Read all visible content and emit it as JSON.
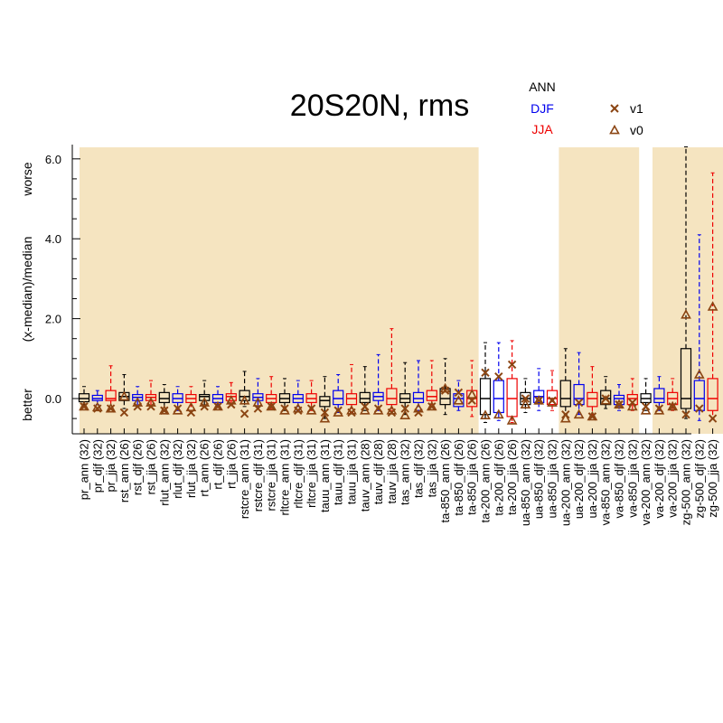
{
  "chart_data": {
    "type": "box",
    "title": "20S20N, rms",
    "ylabel": "(x-median)/median",
    "ylabel_top": "worse",
    "ylabel_bottom": "better",
    "ylim": [
      -0.85,
      6.3
    ],
    "yticks": [
      {
        "value": 0.0,
        "label": "0.0"
      },
      {
        "value": 2.0,
        "label": "2.0"
      },
      {
        "value": 4.0,
        "label": "4.0"
      },
      {
        "value": 6.0,
        "label": "6.0"
      }
    ],
    "season_legend": [
      {
        "name": "ANN",
        "color": "#000000"
      },
      {
        "name": "DJF",
        "color": "#0000ee"
      },
      {
        "name": "JJA",
        "color": "#ee0000"
      }
    ],
    "version_legend": [
      {
        "name": "v1",
        "marker": "x",
        "color": "#8b4513"
      },
      {
        "name": "v0",
        "marker": "triangle",
        "color": "#8b4513"
      }
    ],
    "colors": {
      "shade": "#f5e4c0",
      "marker": "#8b4513",
      "ANN": "#000000",
      "DJF": "#0000ee",
      "JJA": "#ee0000"
    },
    "shaded_groups": [
      {
        "from": 0,
        "to": 29
      },
      {
        "from": 36,
        "to": 41
      },
      {
        "from": 43,
        "to": 50
      }
    ],
    "series": [
      {
        "label": "pr_ann (32)",
        "season": "ANN",
        "min": -0.2,
        "q1": -0.08,
        "median": 0.0,
        "q3": 0.12,
        "max": 0.3,
        "v1": -0.2,
        "v0": -0.2
      },
      {
        "label": "pr_djf (32)",
        "season": "DJF",
        "min": -0.15,
        "q1": -0.05,
        "median": 0.0,
        "q3": 0.08,
        "max": 0.2,
        "v1": -0.25,
        "v0": -0.22
      },
      {
        "label": "pr_jja (32)",
        "season": "JJA",
        "min": -0.25,
        "q1": -0.05,
        "median": 0.0,
        "q3": 0.2,
        "max": 0.82,
        "v1": -0.25,
        "v0": -0.25
      },
      {
        "label": "rst_ann (26)",
        "season": "ANN",
        "min": -0.25,
        "q1": -0.05,
        "median": 0.05,
        "q3": 0.15,
        "max": 0.6,
        "v1": -0.35,
        "v0": 0.05
      },
      {
        "label": "rst_djf (26)",
        "season": "DJF",
        "min": -0.2,
        "q1": -0.05,
        "median": 0.03,
        "q3": 0.1,
        "max": 0.3,
        "v1": -0.2,
        "v0": -0.1
      },
      {
        "label": "rst_jja (26)",
        "season": "JJA",
        "min": -0.2,
        "q1": -0.05,
        "median": 0.03,
        "q3": 0.1,
        "max": 0.45,
        "v1": -0.2,
        "v0": -0.1
      },
      {
        "label": "rlut_ann (32)",
        "season": "ANN",
        "min": -0.3,
        "q1": -0.1,
        "median": 0.0,
        "q3": 0.15,
        "max": 0.35,
        "v1": -0.3,
        "v0": -0.3
      },
      {
        "label": "rlut_djf (32)",
        "season": "DJF",
        "min": -0.3,
        "q1": -0.1,
        "median": 0.0,
        "q3": 0.12,
        "max": 0.3,
        "v1": -0.25,
        "v0": -0.3
      },
      {
        "label": "rlut_jja (32)",
        "season": "JJA",
        "min": -0.3,
        "q1": -0.1,
        "median": 0.0,
        "q3": 0.1,
        "max": 0.3,
        "v1": -0.35,
        "v0": -0.22
      },
      {
        "label": "rt_ann (26)",
        "season": "ANN",
        "min": -0.2,
        "q1": -0.05,
        "median": 0.05,
        "q3": 0.1,
        "max": 0.45,
        "v1": -0.2,
        "v0": -0.1
      },
      {
        "label": "rt_djf (26)",
        "season": "DJF",
        "min": -0.2,
        "q1": -0.1,
        "median": 0.0,
        "q3": 0.1,
        "max": 0.3,
        "v1": -0.2,
        "v0": -0.2
      },
      {
        "label": "rt_jja (26)",
        "season": "JJA",
        "min": -0.15,
        "q1": -0.05,
        "median": 0.05,
        "q3": 0.12,
        "max": 0.4,
        "v1": -0.15,
        "v0": -0.05
      },
      {
        "label": "rstcre_ann (31)",
        "season": "ANN",
        "min": -0.2,
        "q1": -0.05,
        "median": 0.05,
        "q3": 0.2,
        "max": 0.68,
        "v1": -0.38,
        "v0": -0.05
      },
      {
        "label": "rstcre_djf (31)",
        "season": "DJF",
        "min": -0.2,
        "q1": -0.05,
        "median": 0.03,
        "q3": 0.12,
        "max": 0.5,
        "v1": -0.25,
        "v0": -0.1
      },
      {
        "label": "rstcre_jja (31)",
        "season": "JJA",
        "min": -0.25,
        "q1": -0.1,
        "median": 0.0,
        "q3": 0.1,
        "max": 0.55,
        "v1": -0.2,
        "v0": -0.2
      },
      {
        "label": "rltcre_ann (31)",
        "season": "ANN",
        "min": -0.3,
        "q1": -0.1,
        "median": 0.0,
        "q3": 0.12,
        "max": 0.5,
        "v1": -0.25,
        "v0": -0.3
      },
      {
        "label": "rltcre_djf (31)",
        "season": "DJF",
        "min": -0.3,
        "q1": -0.1,
        "median": 0.0,
        "q3": 0.1,
        "max": 0.45,
        "v1": -0.3,
        "v0": -0.25
      },
      {
        "label": "rltcre_jja (31)",
        "season": "JJA",
        "min": -0.3,
        "q1": -0.1,
        "median": 0.0,
        "q3": 0.12,
        "max": 0.45,
        "v1": -0.25,
        "v0": -0.3
      },
      {
        "label": "tauu_ann (31)",
        "season": "ANN",
        "min": -0.5,
        "q1": -0.2,
        "median": -0.05,
        "q3": 0.05,
        "max": 0.55,
        "v1": -0.35,
        "v0": -0.5
      },
      {
        "label": "tauu_djf (31)",
        "season": "DJF",
        "min": -0.35,
        "q1": -0.15,
        "median": 0.0,
        "q3": 0.2,
        "max": 0.6,
        "v1": -0.3,
        "v0": -0.35
      },
      {
        "label": "tauu_jja (31)",
        "season": "JJA",
        "min": -0.35,
        "q1": -0.15,
        "median": 0.0,
        "q3": 0.12,
        "max": 0.85,
        "v1": -0.35,
        "v0": -0.3
      },
      {
        "label": "tauv_ann (28)",
        "season": "ANN",
        "min": -0.3,
        "q1": -0.1,
        "median": 0.0,
        "q3": 0.15,
        "max": 0.8,
        "v1": -0.2,
        "v0": -0.3
      },
      {
        "label": "tauv_djf (28)",
        "season": "DJF",
        "min": -0.3,
        "q1": -0.05,
        "median": 0.05,
        "q3": 0.15,
        "max": 1.1,
        "v1": -0.25,
        "v0": -0.3
      },
      {
        "label": "tauv_jja (28)",
        "season": "JJA",
        "min": -0.3,
        "q1": -0.15,
        "median": 0.0,
        "q3": 0.25,
        "max": 1.75,
        "v1": -0.35,
        "v0": -0.3
      },
      {
        "label": "tas_ann (32)",
        "season": "ANN",
        "min": -0.4,
        "q1": -0.1,
        "median": 0.0,
        "q3": 0.12,
        "max": 0.9,
        "v1": -0.25,
        "v0": -0.42
      },
      {
        "label": "tas_djf (32)",
        "season": "DJF",
        "min": -0.3,
        "q1": -0.1,
        "median": 0.0,
        "q3": 0.15,
        "max": 0.95,
        "v1": -0.35,
        "v0": -0.25
      },
      {
        "label": "tas_jja (32)",
        "season": "JJA",
        "min": -0.2,
        "q1": -0.05,
        "median": 0.05,
        "q3": 0.2,
        "max": 0.95,
        "v1": -0.2,
        "v0": -0.2
      },
      {
        "label": "ta-850_ann (26)",
        "season": "ANN",
        "min": -0.4,
        "q1": -0.15,
        "median": 0.0,
        "q3": 0.25,
        "max": 1.0,
        "v1": 0.2,
        "v0": 0.25
      },
      {
        "label": "ta-850_djf (26)",
        "season": "DJF",
        "min": -0.3,
        "q1": -0.2,
        "median": 0.0,
        "q3": 0.12,
        "max": 0.45,
        "v1": 0.15,
        "v0": -0.05
      },
      {
        "label": "ta-850_jja (26)",
        "season": "JJA",
        "min": -0.45,
        "q1": -0.2,
        "median": 0.0,
        "q3": 0.2,
        "max": 0.95,
        "v1": -0.05,
        "v0": 0.1
      },
      {
        "label": "ta-200_ann (26)",
        "season": "ANN",
        "min": -0.6,
        "q1": -0.4,
        "median": 0.0,
        "q3": 0.5,
        "max": 1.4,
        "v1": 0.65,
        "v0": -0.42
      },
      {
        "label": "ta-200_djf (26)",
        "season": "DJF",
        "min": -0.55,
        "q1": -0.35,
        "median": 0.0,
        "q3": 0.45,
        "max": 1.4,
        "v1": 0.55,
        "v0": -0.4
      },
      {
        "label": "ta-200_jja (26)",
        "season": "JJA",
        "min": -0.6,
        "q1": -0.45,
        "median": 0.0,
        "q3": 0.5,
        "max": 1.45,
        "v1": 0.85,
        "v0": -0.55
      },
      {
        "label": "ua-850_ann (32)",
        "season": "ANN",
        "min": -0.35,
        "q1": -0.15,
        "median": 0.0,
        "q3": 0.15,
        "max": 0.5,
        "v1": 0.0,
        "v0": -0.15
      },
      {
        "label": "ua-850_djf (32)",
        "season": "DJF",
        "min": -0.3,
        "q1": -0.1,
        "median": 0.05,
        "q3": 0.2,
        "max": 0.75,
        "v1": -0.05,
        "v0": -0.05
      },
      {
        "label": "ua-850_jja (32)",
        "season": "JJA",
        "min": -0.3,
        "q1": -0.15,
        "median": 0.0,
        "q3": 0.2,
        "max": 0.7,
        "v1": -0.05,
        "v0": -0.1
      },
      {
        "label": "ua-200_ann (32)",
        "season": "ANN",
        "min": -0.4,
        "q1": -0.2,
        "median": 0.0,
        "q3": 0.45,
        "max": 1.25,
        "v1": -0.4,
        "v0": -0.5
      },
      {
        "label": "ua-200_djf (32)",
        "season": "DJF",
        "min": -0.4,
        "q1": -0.15,
        "median": 0.0,
        "q3": 0.35,
        "max": 1.15,
        "v1": -0.1,
        "v0": -0.4
      },
      {
        "label": "ua-200_jja (32)",
        "season": "JJA",
        "min": -0.45,
        "q1": -0.2,
        "median": 0.0,
        "q3": 0.15,
        "max": 0.8,
        "v1": -0.45,
        "v0": -0.45
      },
      {
        "label": "va-850_ann (32)",
        "season": "ANN",
        "min": -0.25,
        "q1": -0.15,
        "median": 0.0,
        "q3": 0.2,
        "max": 0.55,
        "v1": 0.0,
        "v0": -0.05
      },
      {
        "label": "va-850_djf (32)",
        "season": "DJF",
        "min": -0.3,
        "q1": -0.15,
        "median": 0.0,
        "q3": 0.08,
        "max": 0.35,
        "v1": -0.15,
        "v0": -0.15
      },
      {
        "label": "va-850_jja (32)",
        "season": "JJA",
        "min": -0.3,
        "q1": -0.15,
        "median": 0.0,
        "q3": 0.1,
        "max": 0.5,
        "v1": -0.1,
        "v0": -0.2
      },
      {
        "label": "va-200_ann (32)",
        "season": "ANN",
        "min": -0.3,
        "q1": -0.1,
        "median": 0.0,
        "q3": 0.12,
        "max": 0.5,
        "v1": -0.2,
        "v0": -0.3
      },
      {
        "label": "va-200_djf (32)",
        "season": "DJF",
        "min": -0.3,
        "q1": -0.1,
        "median": 0.0,
        "q3": 0.25,
        "max": 0.55,
        "v1": -0.25,
        "v0": -0.3
      },
      {
        "label": "va-200_jja (32)",
        "season": "JJA",
        "min": -0.3,
        "q1": -0.15,
        "median": 0.0,
        "q3": 0.15,
        "max": 0.5,
        "v1": -0.2,
        "v0": -0.2
      },
      {
        "label": "zg-500_ann (32)",
        "season": "ANN",
        "min": -0.5,
        "q1": -0.25,
        "median": 0.0,
        "q3": 1.25,
        "max": 6.3,
        "v1": -0.4,
        "v0": 2.1
      },
      {
        "label": "zg-500_djf (32)",
        "season": "DJF",
        "min": -0.55,
        "q1": -0.3,
        "median": 0.0,
        "q3": 0.45,
        "max": 4.1,
        "v1": -0.25,
        "v0": 0.6
      },
      {
        "label": "zg-500_jja (32)",
        "season": "JJA",
        "min": -0.5,
        "q1": -0.3,
        "median": 0.0,
        "q3": 0.5,
        "max": 5.65,
        "v1": -0.5,
        "v0": 2.3
      }
    ]
  }
}
